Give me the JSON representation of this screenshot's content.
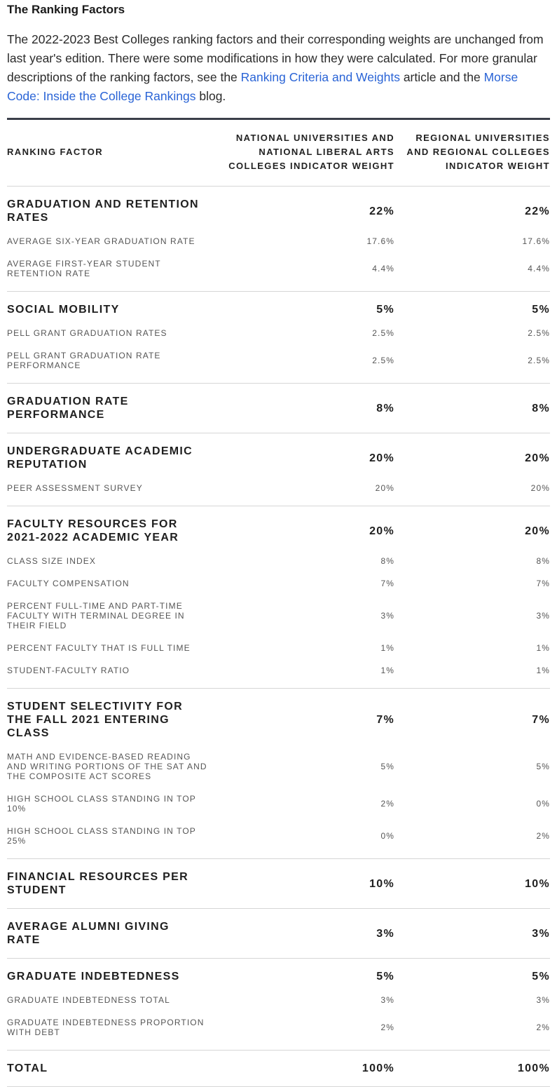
{
  "title": "The Ranking Factors",
  "intro": {
    "text1": "The 2022-2023 Best Colleges ranking factors and their corresponding weights are unchanged from last year's edition. There were some modifications in how they were calculated. For more granular descriptions of the ranking factors, see the ",
    "link1": "Ranking Criteria and Weights",
    "text2": " article and the ",
    "link2": "Morse Code: Inside the College Rankings",
    "text3": " blog."
  },
  "table": {
    "headers": [
      "RANKING FACTOR",
      "NATIONAL UNIVERSITIES AND NATIONAL LIBERAL ARTS COLLEGES INDICATOR WEIGHT",
      "REGIONAL UNIVERSITIES AND REGIONAL COLLEGES INDICATOR WEIGHT"
    ],
    "groups": [
      {
        "factor": "GRADUATION AND RETENTION RATES",
        "national": "22%",
        "regional": "22%",
        "subs": [
          {
            "factor": "AVERAGE SIX-YEAR GRADUATION RATE",
            "national": "17.6%",
            "regional": "17.6%"
          },
          {
            "factor": "AVERAGE FIRST-YEAR STUDENT RETENTION RATE",
            "national": "4.4%",
            "regional": "4.4%"
          }
        ]
      },
      {
        "factor": "SOCIAL MOBILITY",
        "national": "5%",
        "regional": "5%",
        "subs": [
          {
            "factor": "PELL GRANT GRADUATION RATES",
            "national": "2.5%",
            "regional": "2.5%"
          },
          {
            "factor": "PELL GRANT GRADUATION RATE PERFORMANCE",
            "national": "2.5%",
            "regional": "2.5%"
          }
        ]
      },
      {
        "factor": "GRADUATION RATE PERFORMANCE",
        "national": "8%",
        "regional": "8%",
        "subs": []
      },
      {
        "factor": "UNDERGRADUATE ACADEMIC REPUTATION",
        "national": "20%",
        "regional": "20%",
        "subs": [
          {
            "factor": "PEER ASSESSMENT SURVEY",
            "national": "20%",
            "regional": "20%"
          }
        ]
      },
      {
        "factor": "FACULTY RESOURCES FOR 2021-2022 ACADEMIC YEAR",
        "national": "20%",
        "regional": "20%",
        "subs": [
          {
            "factor": "CLASS SIZE INDEX",
            "national": "8%",
            "regional": "8%"
          },
          {
            "factor": "FACULTY COMPENSATION",
            "national": "7%",
            "regional": "7%"
          },
          {
            "factor": "PERCENT FULL-TIME AND PART-TIME FACULTY WITH TERMINAL DEGREE IN THEIR FIELD",
            "national": "3%",
            "regional": "3%"
          },
          {
            "factor": "PERCENT FACULTY THAT IS FULL TIME",
            "national": "1%",
            "regional": "1%"
          },
          {
            "factor": "STUDENT-FACULTY RATIO",
            "national": "1%",
            "regional": "1%"
          }
        ]
      },
      {
        "factor": "STUDENT SELECTIVITY FOR THE FALL 2021 ENTERING CLASS",
        "national": "7%",
        "regional": "7%",
        "subs": [
          {
            "factor": "MATH AND EVIDENCE-BASED READING AND WRITING PORTIONS OF THE SAT AND THE COMPOSITE ACT SCORES",
            "national": "5%",
            "regional": "5%"
          },
          {
            "factor": "HIGH SCHOOL CLASS STANDING IN TOP 10%",
            "national": "2%",
            "regional": "0%"
          },
          {
            "factor": "HIGH SCHOOL CLASS STANDING IN TOP 25%",
            "national": "0%",
            "regional": "2%"
          }
        ]
      },
      {
        "factor": "FINANCIAL RESOURCES PER STUDENT",
        "national": "10%",
        "regional": "10%",
        "subs": []
      },
      {
        "factor": "AVERAGE ALUMNI GIVING RATE",
        "national": "3%",
        "regional": "3%",
        "subs": []
      },
      {
        "factor": "GRADUATE INDEBTEDNESS",
        "national": "5%",
        "regional": "5%",
        "subs": [
          {
            "factor": "GRADUATE INDEBTEDNESS TOTAL",
            "national": "3%",
            "regional": "3%"
          },
          {
            "factor": "GRADUATE INDEBTEDNESS PROPORTION WITH DEBT",
            "national": "2%",
            "regional": "2%"
          }
        ]
      },
      {
        "factor": "TOTAL",
        "national": "100%",
        "regional": "100%",
        "subs": []
      }
    ]
  }
}
